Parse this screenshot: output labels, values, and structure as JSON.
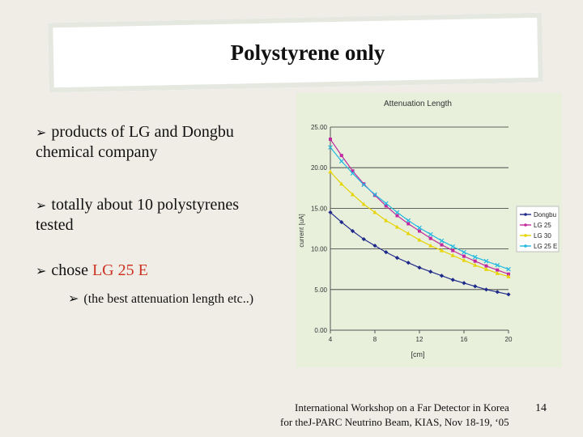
{
  "slide": {
    "title": "Polystyrene only",
    "bullets": [
      {
        "line1": "products of LG and Dongbu",
        "line2": "chemical company"
      },
      {
        "line1": "totally about 10 polystyrenes",
        "line2": "tested"
      },
      {
        "prefix": "chose ",
        "highlight": "LG 25 E"
      }
    ],
    "sub_bullet": "(the best attenuation length etc..)",
    "footer_line1": "International Workshop on a Far Detector in Korea",
    "footer_line2": "for theJ-PARC Neutrino Beam,   KIAS,   Nov 18-19, ‘05",
    "page_number": "14",
    "bullet_icon": "arrow-bullet-icon"
  },
  "chart_data": {
    "type": "line",
    "title": "Attenuation Length",
    "xlabel": "[cm]",
    "ylabel": "current [uA]",
    "x": [
      4,
      5,
      6,
      7,
      8,
      9,
      10,
      11,
      12,
      13,
      14,
      15,
      16,
      17,
      18,
      19,
      20
    ],
    "x_ticks": [
      "4",
      "8",
      "12",
      "16",
      "20"
    ],
    "y_ticks": [
      "0.00",
      "5.00",
      "10.00",
      "15.00",
      "20.00",
      "25.00"
    ],
    "ylim": [
      0,
      25
    ],
    "xlim": [
      4,
      20
    ],
    "grid": true,
    "legend_position": "right",
    "series": [
      {
        "name": "Dongbu",
        "color": "#1f2a8a",
        "values": [
          14.5,
          13.3,
          12.2,
          11.2,
          10.4,
          9.6,
          8.9,
          8.3,
          7.7,
          7.2,
          6.7,
          6.2,
          5.8,
          5.4,
          5.0,
          4.7,
          4.4
        ]
      },
      {
        "name": "LG 25",
        "color": "#c02aa0",
        "values": [
          23.5,
          21.5,
          19.6,
          18.0,
          16.6,
          15.3,
          14.1,
          13.1,
          12.2,
          11.3,
          10.5,
          9.8,
          9.1,
          8.5,
          7.9,
          7.4,
          6.9
        ]
      },
      {
        "name": "LG 30",
        "color": "#e6d400",
        "values": [
          19.5,
          18.0,
          16.7,
          15.5,
          14.5,
          13.5,
          12.7,
          11.9,
          11.1,
          10.4,
          9.8,
          9.2,
          8.6,
          8.0,
          7.5,
          7.0,
          6.6
        ]
      },
      {
        "name": "LG 25 E",
        "color": "#22b8e0",
        "values": [
          22.5,
          20.8,
          19.3,
          17.9,
          16.7,
          15.6,
          14.5,
          13.5,
          12.6,
          11.8,
          11.0,
          10.3,
          9.6,
          9.0,
          8.5,
          8.0,
          7.5
        ]
      }
    ]
  }
}
